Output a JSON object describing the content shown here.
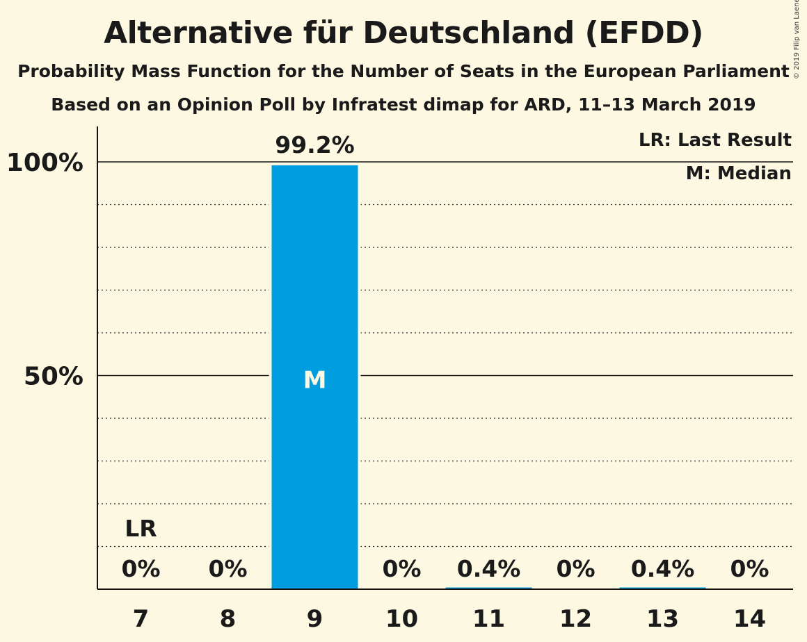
{
  "copyright": "© 2019 Filip van Laenen",
  "chart_data": {
    "type": "bar",
    "title": "Alternative für Deutschland (EFDD)",
    "subtitle": "Probability Mass Function for the Number of Seats in the European Parliament",
    "source": "Based on an Opinion Poll by Infratest dimap for ARD, 11–13 March 2019",
    "categories": [
      "7",
      "8",
      "9",
      "10",
      "11",
      "12",
      "13",
      "14"
    ],
    "values": [
      0,
      0,
      99.2,
      0,
      0.4,
      0,
      0.4,
      0
    ],
    "value_labels": [
      "0%",
      "0%",
      "99.2%",
      "0%",
      "0.4%",
      "0%",
      "0.4%",
      "0%"
    ],
    "ylim": [
      0,
      100
    ],
    "y_ticks": [
      {
        "value": 50,
        "label": "50%"
      },
      {
        "value": 100,
        "label": "100%"
      }
    ],
    "y_gridlines": [
      10,
      20,
      30,
      40,
      60,
      70,
      80,
      90
    ],
    "last_result": {
      "category": "7",
      "label": "LR"
    },
    "median": {
      "category": "9",
      "label": "M"
    },
    "legend": {
      "position": "top-right",
      "items": [
        "LR: Last Result",
        "M: Median"
      ]
    },
    "bar_color": "#009de0",
    "grid": true
  }
}
